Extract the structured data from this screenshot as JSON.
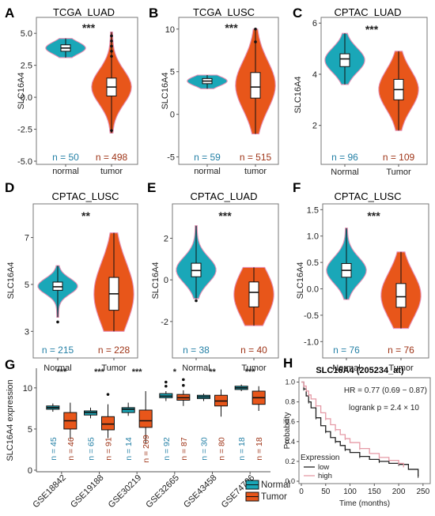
{
  "colors": {
    "normal": "#1aa7b8",
    "tumor": "#e8561a",
    "n_normal": "#2480a6",
    "n_tumor": "#9e3316",
    "km_low": "#222222",
    "km_high": "#e59aa6"
  },
  "chart_data": [
    {
      "panel": "A",
      "type": "violin",
      "title": "TCGA_LUAD",
      "ylabel": "SLC16A4",
      "ylim": [
        -5,
        6
      ],
      "yticks": [
        "5.0",
        "2.5",
        "0.0",
        "-2.5",
        "-5.0"
      ],
      "ytick_values": [
        5.0,
        2.5,
        0.0,
        -2.5,
        -5.0
      ],
      "significance": "***",
      "groups": [
        {
          "label": "normal",
          "n_label": "n = 50",
          "min": 3.1,
          "q1": 3.6,
          "median": 3.85,
          "q3": 4.1,
          "max": 4.6,
          "outliers": []
        },
        {
          "label": "tumor",
          "n_label": "n = 498",
          "min": -2.8,
          "q1": 0.1,
          "median": 0.8,
          "q3": 1.5,
          "max": 5.1,
          "outliers": [
            -2.6,
            3.2,
            3.6,
            4.0,
            4.4,
            4.8
          ]
        }
      ]
    },
    {
      "panel": "B",
      "type": "violin",
      "title": "TCGA_LUSC",
      "ylabel": "SLC16A4",
      "ylim": [
        -5.5,
        11
      ],
      "yticks": [
        "10",
        "5",
        "0",
        "-5"
      ],
      "ytick_values": [
        10,
        5,
        0,
        -5
      ],
      "significance": "***",
      "groups": [
        {
          "label": "normal",
          "n_label": "n = 59",
          "min": 3.0,
          "q1": 3.6,
          "median": 3.9,
          "q3": 4.2,
          "max": 4.6,
          "outliers": []
        },
        {
          "label": "tumor",
          "n_label": "n = 515",
          "min": -2.3,
          "q1": 1.9,
          "median": 3.2,
          "q3": 4.9,
          "max": 10.0,
          "outliers": [
            8.5,
            10.0
          ]
        }
      ]
    },
    {
      "panel": "C",
      "type": "violin",
      "title": "CPTAC_LUAD",
      "ylabel": "SLC16A4",
      "ylim": [
        0.6,
        6.1
      ],
      "yticks": [
        "6",
        "4",
        "2"
      ],
      "ytick_values": [
        6,
        4,
        2
      ],
      "significance": "***",
      "groups": [
        {
          "label": "Normal",
          "n_label": "n = 96",
          "min": 3.6,
          "q1": 4.3,
          "median": 4.6,
          "q3": 4.8,
          "max": 5.6,
          "outliers": []
        },
        {
          "label": "Tumor",
          "n_label": "n = 109",
          "min": 1.8,
          "q1": 3.0,
          "median": 3.4,
          "q3": 3.8,
          "max": 4.9,
          "outliers": []
        }
      ]
    },
    {
      "panel": "D",
      "type": "violin",
      "title": "CPTAC_LUSC",
      "ylabel": "SLC16A4",
      "ylim": [
        2,
        8.3
      ],
      "yticks": [
        "7",
        "5",
        "3"
      ],
      "ytick_values": [
        7,
        5,
        3
      ],
      "significance": "**",
      "groups": [
        {
          "label": "Normal",
          "n_label": "n = 215",
          "min": 3.6,
          "q1": 4.75,
          "median": 4.9,
          "q3": 5.1,
          "max": 5.8,
          "outliers": [
            3.4
          ]
        },
        {
          "label": "Tumor",
          "n_label": "n = 228",
          "min": 3.0,
          "q1": 3.9,
          "median": 4.6,
          "q3": 5.3,
          "max": 7.2,
          "outliers": []
        }
      ]
    },
    {
      "panel": "E",
      "type": "violin",
      "title": "CPTAC_LUAD",
      "ylabel": "SLC16A4",
      "ylim": [
        -3.6,
        3.5
      ],
      "yticks": [
        "2",
        "0",
        "-2"
      ],
      "ytick_values": [
        2,
        0,
        -2
      ],
      "significance": "***",
      "groups": [
        {
          "label": "Normal",
          "n_label": "n = 38",
          "min": -0.9,
          "q1": 0.15,
          "median": 0.45,
          "q3": 0.8,
          "max": 2.6,
          "outliers": [
            -1.0
          ]
        },
        {
          "label": "Tumor",
          "n_label": "n = 40",
          "min": -2.2,
          "q1": -1.3,
          "median": -0.6,
          "q3": -0.1,
          "max": 0.6,
          "outliers": []
        }
      ]
    },
    {
      "panel": "F",
      "type": "violin",
      "title": "CPTAC_LUSC",
      "ylabel": "SLC16A4",
      "ylim": [
        -1.25,
        1.55
      ],
      "yticks": [
        "1.5",
        "1.0",
        "0.5",
        "0.0",
        "-0.5",
        "-1.0"
      ],
      "ytick_values": [
        1.5,
        1.0,
        0.5,
        0.0,
        -0.5,
        -1.0
      ],
      "significance": "***",
      "groups": [
        {
          "label": "Normal",
          "n_label": "n = 76",
          "min": -0.2,
          "q1": 0.22,
          "median": 0.35,
          "q3": 0.48,
          "max": 1.15,
          "outliers": []
        },
        {
          "label": "Tumor",
          "n_label": "n = 76",
          "min": -0.75,
          "q1": -0.35,
          "median": -0.15,
          "q3": 0.1,
          "max": 0.7,
          "outliers": []
        }
      ]
    },
    {
      "panel": "G",
      "type": "boxplot",
      "ylabel": "SLC16A4 expression",
      "ylim": [
        0,
        12
      ],
      "yticks": [
        "10",
        "5",
        "0"
      ],
      "ytick_values": [
        10,
        5,
        0
      ],
      "legend": [
        "Normal",
        "Tumor"
      ],
      "datasets": [
        {
          "name": "GSE18842",
          "significance": "***",
          "normal": {
            "n_label": "n = 45",
            "min": 7.1,
            "q1": 7.4,
            "median": 7.6,
            "q3": 7.8,
            "max": 8.1,
            "outliers": []
          },
          "tumor": {
            "n_label": "n = 46",
            "min": 3.8,
            "q1": 5.0,
            "median": 6.0,
            "q3": 7.0,
            "max": 8.2,
            "outliers": []
          }
        },
        {
          "name": "GSE19188",
          "significance": "***",
          "normal": {
            "n_label": "n = 65",
            "min": 6.3,
            "q1": 6.7,
            "median": 7.0,
            "q3": 7.2,
            "max": 7.6,
            "outliers": []
          },
          "tumor": {
            "n_label": "n = 91",
            "min": 3.9,
            "q1": 4.9,
            "median": 5.6,
            "q3": 6.5,
            "max": 8.0,
            "outliers": [
              9.2
            ]
          }
        },
        {
          "name": "GSE30219",
          "significance": "***",
          "normal": {
            "n_label": "n = 14",
            "min": 6.6,
            "q1": 7.0,
            "median": 7.4,
            "q3": 7.6,
            "max": 8.2,
            "outliers": []
          },
          "tumor": {
            "n_label": "n = 209",
            "min": 3.2,
            "q1": 5.2,
            "median": 6.0,
            "q3": 7.3,
            "max": 9.6,
            "outliers": []
          }
        },
        {
          "name": "GSE32665",
          "significance": "*",
          "normal": {
            "n_label": "n = 92",
            "min": 8.4,
            "q1": 8.8,
            "median": 9.0,
            "q3": 9.3,
            "max": 9.6,
            "outliers": [
              10.2,
              10.7
            ]
          },
          "tumor": {
            "n_label": "n = 87",
            "min": 7.8,
            "q1": 8.5,
            "median": 8.8,
            "q3": 9.2,
            "max": 9.7,
            "outliers": [
              10.3,
              11.0
            ]
          }
        },
        {
          "name": "GSE43458",
          "significance": "**",
          "normal": {
            "n_label": "n = 30",
            "min": 8.4,
            "q1": 8.7,
            "median": 8.9,
            "q3": 9.1,
            "max": 9.3,
            "outliers": []
          },
          "tumor": {
            "n_label": "n = 80",
            "min": 6.5,
            "q1": 7.8,
            "median": 8.4,
            "q3": 9.1,
            "max": 9.8,
            "outliers": []
          }
        },
        {
          "name": "GSE74706",
          "significance": "***",
          "normal": {
            "n_label": "n = 18",
            "min": 9.6,
            "q1": 9.8,
            "median": 10.0,
            "q3": 10.2,
            "max": 10.4,
            "outliers": []
          },
          "tumor": {
            "n_label": "n = 18",
            "min": 7.2,
            "q1": 8.0,
            "median": 8.8,
            "q3": 9.6,
            "max": 10.2,
            "outliers": []
          }
        }
      ]
    },
    {
      "panel": "H",
      "type": "line",
      "title": "SLC16A4 (205234_at)",
      "xlabel": "Time (months)",
      "ylabel": "Probability",
      "xlim": [
        0,
        260
      ],
      "ylim": [
        0,
        1.02
      ],
      "xticks": [
        "0",
        "50",
        "100",
        "150",
        "200",
        "250"
      ],
      "xtick_values": [
        0,
        50,
        100,
        150,
        200,
        250
      ],
      "yticks": [
        "0.0",
        "0.2",
        "0.4",
        "0.6",
        "0.8",
        "1.0"
      ],
      "ytick_values": [
        0,
        0.2,
        0.4,
        0.6,
        0.8,
        1.0
      ],
      "hr_label": "HR = 0.77 (0.69 − 0.87)",
      "logrank_label": "logrank p = 2.4 × 10",
      "legend_title": "Expression",
      "series": [
        {
          "name": "low",
          "points": [
            [
              0,
              1.0
            ],
            [
              5,
              0.93
            ],
            [
              10,
              0.86
            ],
            [
              15,
              0.8
            ],
            [
              20,
              0.74
            ],
            [
              30,
              0.64
            ],
            [
              40,
              0.56
            ],
            [
              50,
              0.5
            ],
            [
              60,
              0.44
            ],
            [
              70,
              0.4
            ],
            [
              80,
              0.36
            ],
            [
              90,
              0.32
            ],
            [
              100,
              0.29
            ],
            [
              120,
              0.25
            ],
            [
              140,
              0.22
            ],
            [
              160,
              0.2
            ],
            [
              180,
              0.18
            ],
            [
              200,
              0.17
            ],
            [
              220,
              0.12
            ],
            [
              240,
              0.05
            ]
          ]
        },
        {
          "name": "high",
          "points": [
            [
              0,
              1.0
            ],
            [
              5,
              0.96
            ],
            [
              10,
              0.91
            ],
            [
              15,
              0.87
            ],
            [
              20,
              0.83
            ],
            [
              30,
              0.76
            ],
            [
              40,
              0.69
            ],
            [
              50,
              0.63
            ],
            [
              60,
              0.57
            ],
            [
              70,
              0.52
            ],
            [
              80,
              0.47
            ],
            [
              90,
              0.43
            ],
            [
              100,
              0.39
            ],
            [
              120,
              0.33
            ],
            [
              140,
              0.28
            ],
            [
              160,
              0.24
            ],
            [
              180,
              0.21
            ],
            [
              200,
              0.18
            ],
            [
              210,
              0.14
            ]
          ]
        }
      ]
    }
  ]
}
